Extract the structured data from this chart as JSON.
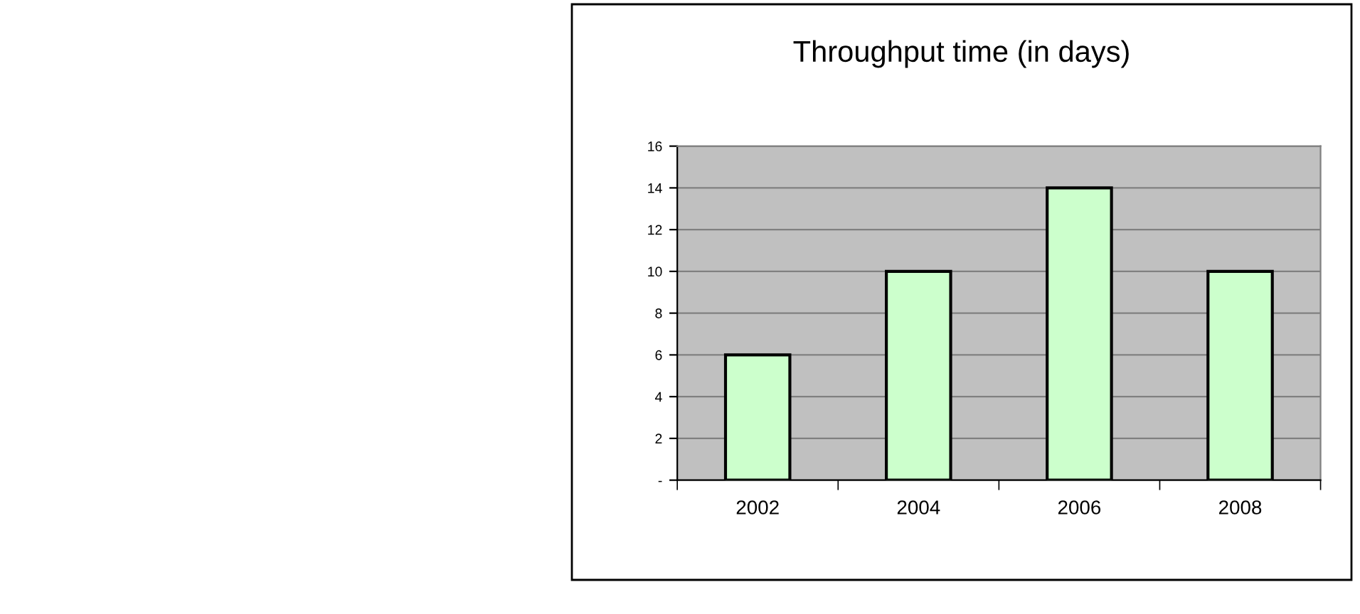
{
  "chart_data": {
    "type": "bar",
    "title": "Throughput time (in days)",
    "categories": [
      "2002",
      "2004",
      "2006",
      "2008"
    ],
    "values": [
      6,
      10,
      14,
      10
    ],
    "color": "#ccffcc",
    "ylim": [
      0,
      16
    ],
    "yticks": [
      {
        "value": 0,
        "label": "-"
      },
      2,
      4,
      6,
      8,
      10,
      12,
      14,
      16
    ],
    "grid": "y",
    "legend": false
  }
}
